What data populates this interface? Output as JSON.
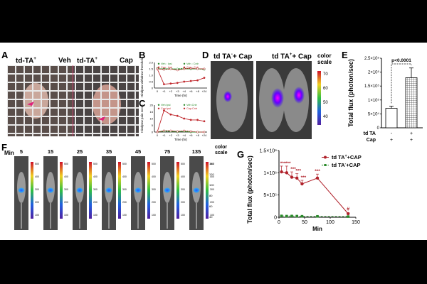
{
  "panel_labels": {
    "A": "A",
    "B": "B",
    "C": "C",
    "D": "D",
    "E": "E",
    "F": "F",
    "G": "G"
  },
  "panelA": {
    "left_label": "td-TA",
    "left_sup": "+",
    "left_treat": "Veh",
    "right_label": "td-TA",
    "right_sup": "+",
    "right_treat": "Cap"
  },
  "panelD": {
    "left_title": "td TA",
    "left_sup": "-",
    "left_suffix": "+ Cap",
    "right_title": "td TA",
    "right_sup": "+",
    "right_suffix": "+ Cap",
    "scale_label": "color scale",
    "scale_ticks": [
      "70",
      "60",
      "50",
      "40"
    ]
  },
  "panelF": {
    "time_label": "Min",
    "times": [
      "5",
      "15",
      "25",
      "35",
      "45",
      "75",
      "135"
    ],
    "scale_label": "color scale",
    "scale_ticks": [
      "500",
      "400",
      "300",
      "200",
      "100"
    ],
    "right_ticks": [
      "140",
      "120",
      "100",
      "80",
      "60",
      "40"
    ]
  },
  "chart_data": [
    {
      "panel": "B",
      "type": "line",
      "ylabel": "Hindpaw withdraw threshold(g)",
      "xlabel": "Time (hr)",
      "categories": [
        "0",
        "+1",
        "+2",
        "+3",
        "+4",
        "+6",
        "+8",
        "+24"
      ],
      "ylim": [
        0,
        2
      ],
      "yticks": [
        "0",
        "0.5",
        "1.0",
        "1.5",
        "2.0"
      ],
      "legend": [
        "Veh : Ipsi",
        "Veh : Cntr",
        "Cap : Ipsi",
        "Cap : Cntr"
      ],
      "series": [
        {
          "name": "Veh : Ipsi",
          "color": "#2a8a2a",
          "values": [
            1.5,
            1.5,
            1.5,
            1.45,
            1.5,
            1.5,
            1.5,
            1.5
          ]
        },
        {
          "name": "Veh : Cntr",
          "color": "#2a8a2a",
          "values": [
            1.55,
            1.45,
            1.5,
            1.5,
            1.55,
            1.5,
            1.5,
            1.45
          ]
        },
        {
          "name": "Cap : Ipsi",
          "color": "#c0282d",
          "values": [
            1.5,
            0.3,
            0.35,
            0.4,
            0.5,
            0.55,
            0.6,
            0.8
          ]
        },
        {
          "name": "Cap : Cntr",
          "color": "#c0282d",
          "values": [
            1.5,
            1.45,
            1.5,
            1.4,
            1.5,
            1.55,
            1.5,
            1.5
          ]
        }
      ]
    },
    {
      "panel": "C",
      "type": "line",
      "ylabel": "Hindpaw pain score",
      "xlabel": "Time (hr)",
      "categories": [
        "0",
        "+1",
        "+2",
        "+3",
        "+4",
        "+6",
        "+8",
        "+24"
      ],
      "ylim": [
        0,
        20
      ],
      "yticks": [
        "0",
        "5",
        "10",
        "15",
        "20"
      ],
      "legend": [
        "Veh:Ipsi",
        "Veh:Cntr",
        "Cap:Ipsi",
        "Cap:Cntr"
      ],
      "series": [
        {
          "name": "Veh:Ipsi",
          "color": "#2a8a2a",
          "values": [
            0,
            1,
            0.5,
            0.5,
            0.5,
            0,
            0,
            0
          ]
        },
        {
          "name": "Veh:Cntr",
          "color": "#2a8a2a",
          "values": [
            0,
            0.5,
            0.5,
            0,
            0.5,
            0,
            0,
            0
          ]
        },
        {
          "name": "Cap:Ipsi",
          "color": "#c0282d",
          "values": [
            0,
            16,
            13,
            12,
            10,
            9,
            9,
            8
          ]
        },
        {
          "name": "Cap:Cntr",
          "color": "#c0282d",
          "values": [
            0,
            1,
            1,
            0.5,
            1,
            0.5,
            0,
            0
          ]
        }
      ]
    },
    {
      "panel": "E",
      "type": "bar",
      "ylabel": "Total flux (photon/sec)",
      "categories": [
        "td TA -, Cap +",
        "td TA +, Cap +"
      ],
      "row1_label": "td TA",
      "row1_values": [
        "-",
        "+"
      ],
      "row2_label": "Cap",
      "row2_values": [
        "+",
        "+"
      ],
      "values": [
        70000,
        180000
      ],
      "errors": [
        8000,
        35000
      ],
      "ylim": [
        0,
        250000
      ],
      "yticks": [
        "0",
        "5×10⁴",
        "1×10⁵",
        "1.5×10⁵",
        "2×10⁵",
        "2.5×10⁵"
      ],
      "annotation": "p<0.0001"
    },
    {
      "panel": "G",
      "type": "line",
      "ylabel": "Total flux (photon/sec)",
      "xlabel": "Min",
      "xlim": [
        0,
        150
      ],
      "xticks": [
        "0",
        "50",
        "100",
        "150"
      ],
      "ylim": [
        0,
        1500000
      ],
      "yticks": [
        "0",
        "5×10⁵",
        "1×10⁶",
        "1.5×10⁶"
      ],
      "legend_entries": [
        {
          "base": "td TA",
          "sup": "+",
          "suffix": "+CAP"
        },
        {
          "base": "td TA",
          "sup": "-",
          "suffix": "+CAP"
        }
      ],
      "series": [
        {
          "name": "td TA+ +CAP",
          "color": "#b0212a",
          "x": [
            5,
            15,
            25,
            35,
            45,
            75,
            135
          ],
          "y": [
            1020000,
            1000000,
            900000,
            880000,
            750000,
            880000,
            80000
          ],
          "errors": [
            130000,
            150000,
            120000,
            100000,
            80000,
            90000,
            20000
          ]
        },
        {
          "name": "td TA- +CAP",
          "color": "#2a8a2a",
          "x": [
            5,
            15,
            25,
            35,
            45,
            75,
            135
          ],
          "y": [
            30000,
            25000,
            28000,
            25000,
            22000,
            20000,
            15000
          ],
          "errors": [
            5000,
            5000,
            5000,
            5000,
            5000,
            5000,
            5000
          ]
        }
      ],
      "stars": [
        "***",
        "***",
        "***",
        "***",
        "***",
        "***",
        "***"
      ],
      "hash": "#"
    }
  ]
}
